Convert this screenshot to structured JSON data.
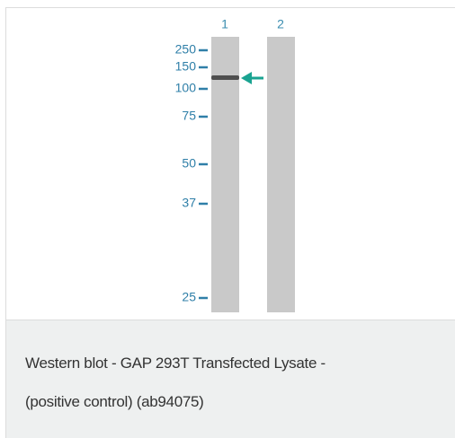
{
  "lanes": [
    {
      "label": "1"
    },
    {
      "label": "2"
    }
  ],
  "markers": [
    {
      "label": "250"
    },
    {
      "label": "150"
    },
    {
      "label": "100"
    },
    {
      "label": "75"
    },
    {
      "label": "50"
    },
    {
      "label": "37"
    },
    {
      "label": "25"
    }
  ],
  "caption": {
    "lines": [
      "Western blot - GAP 293T Transfected Lysate -",
      "(positive control) (ab94075)"
    ]
  }
}
